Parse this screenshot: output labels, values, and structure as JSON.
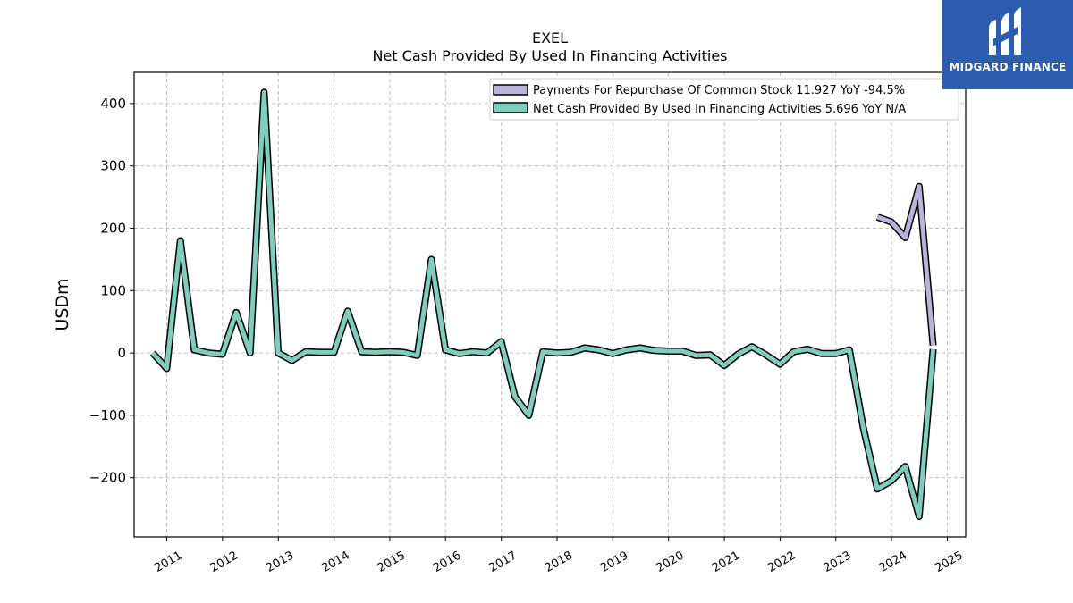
{
  "brand": {
    "name": "MIDGARD FINANCE",
    "bg": "#2b5cad"
  },
  "chart_data": {
    "type": "line",
    "title": "EXEL",
    "subtitle": "Net Cash Provided By Used In Financing Activities",
    "ylabel": "USDm",
    "xlabel": "",
    "ylim": [
      -295,
      450
    ],
    "yticks": [
      400,
      300,
      200,
      100,
      0,
      -100,
      -200
    ],
    "ytick_labels": [
      "400",
      "300",
      "200",
      "100",
      "0",
      "−100",
      "−200"
    ],
    "xlim": [
      "2010-06-01",
      "2025-05-01"
    ],
    "xticks": [
      "2011-01-01",
      "2012-01-01",
      "2013-01-01",
      "2014-01-01",
      "2015-01-01",
      "2016-01-01",
      "2017-01-01",
      "2018-01-01",
      "2019-01-01",
      "2020-01-01",
      "2021-01-01",
      "2022-01-01",
      "2023-01-01",
      "2024-01-01",
      "2025-01-01"
    ],
    "xtick_labels": [
      "2011",
      "2012",
      "2013",
      "2014",
      "2015",
      "2016",
      "2017",
      "2018",
      "2019",
      "2020",
      "2021",
      "2022",
      "2023",
      "2024",
      "2025"
    ],
    "grid": true,
    "legend_position": "top-right",
    "series": [
      {
        "name": "Payments For Repurchase Of Common Stock",
        "legend_label": "Payments For Repurchase Of Common Stock  11.927 YoY -94.5%",
        "color": "#bab4d8",
        "x": [
          "2023-09-30",
          "2023-12-31",
          "2024-03-31",
          "2024-06-30",
          "2024-09-30"
        ],
        "values": [
          218,
          210,
          185,
          267,
          12
        ]
      },
      {
        "name": "Net Cash Provided By Used In Financing Activities",
        "legend_label": "Net Cash Provided By Used In Financing Activities  5.696 YoY N/A",
        "color": "#7fcdbb",
        "x": [
          "2010-09-30",
          "2010-12-31",
          "2011-03-31",
          "2011-06-30",
          "2011-09-30",
          "2011-12-31",
          "2012-03-31",
          "2012-06-30",
          "2012-09-30",
          "2012-12-31",
          "2013-03-31",
          "2013-06-30",
          "2013-09-30",
          "2013-12-31",
          "2014-03-31",
          "2014-06-30",
          "2014-09-30",
          "2014-12-31",
          "2015-03-31",
          "2015-06-30",
          "2015-09-30",
          "2015-12-31",
          "2016-03-31",
          "2016-06-30",
          "2016-09-30",
          "2016-12-31",
          "2017-03-31",
          "2017-06-30",
          "2017-09-30",
          "2017-12-31",
          "2018-03-31",
          "2018-06-30",
          "2018-09-30",
          "2018-12-31",
          "2019-03-31",
          "2019-06-30",
          "2019-09-30",
          "2019-12-31",
          "2020-03-31",
          "2020-06-30",
          "2020-09-30",
          "2020-12-31",
          "2021-03-31",
          "2021-06-30",
          "2021-09-30",
          "2021-12-31",
          "2022-03-31",
          "2022-06-30",
          "2022-09-30",
          "2022-12-31",
          "2023-03-31",
          "2023-06-30",
          "2023-09-30",
          "2023-12-31",
          "2024-03-31",
          "2024-06-30",
          "2024-09-30"
        ],
        "values": [
          0,
          -25,
          180,
          5,
          0,
          -2,
          65,
          0,
          418,
          0,
          -12,
          2,
          1,
          1,
          67,
          2,
          1,
          2,
          1,
          -4,
          150,
          5,
          -1,
          2,
          0,
          18,
          -70,
          -100,
          2,
          0,
          1,
          8,
          5,
          -1,
          5,
          8,
          4,
          3,
          3,
          -4,
          -3,
          -20,
          -2,
          10,
          -3,
          -18,
          2,
          6,
          -1,
          -1,
          5,
          -120,
          -218,
          -205,
          -182,
          -262,
          6
        ]
      }
    ]
  }
}
